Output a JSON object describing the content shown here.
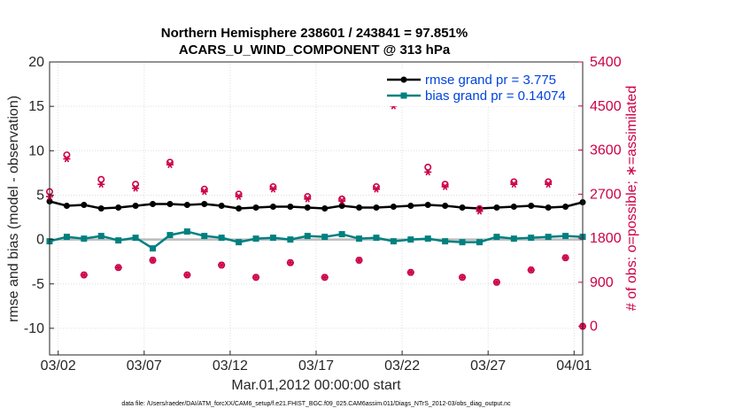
{
  "chart_data": {
    "type": "line",
    "title_line1": "Northern Hemisphere 238601 / 243841 = 97.851%",
    "title_line2": "ACARS_U_WIND_COMPONENT @ 313 hPa",
    "xlabel": "Mar.01,2012 00:00:00 start",
    "ylabel_left": "rmse and bias (model - observation)",
    "ylabel_right": "# of obs: o=possible; ∗=assimilated",
    "footnote": "data file: /Users/raeder/DAI/ATM_forcXX/CAM6_setup/f.e21.FHIST_BGC.f09_025.CAM6assim.011/Diags_NTrS_2012-03/obs_diag_output.nc",
    "x_range_days": [
      0.5,
      31.5
    ],
    "x_ticks": [
      {
        "day": 1,
        "label": "03/02"
      },
      {
        "day": 6,
        "label": "03/07"
      },
      {
        "day": 11,
        "label": "03/12"
      },
      {
        "day": 16,
        "label": "03/17"
      },
      {
        "day": 21,
        "label": "03/22"
      },
      {
        "day": 26,
        "label": "03/27"
      },
      {
        "day": 31,
        "label": "04/01"
      }
    ],
    "ylim_left": [
      -13,
      20
    ],
    "yticks_left": [
      20,
      15,
      10,
      5,
      0,
      -5,
      -10
    ],
    "ylim_right": [
      -585,
      5400
    ],
    "yticks_right": [
      5400,
      4500,
      3600,
      2700,
      1800,
      900,
      0
    ],
    "zero_line": true,
    "legend": [
      {
        "label": "rmse grand pr = 3.775",
        "color": "#000000"
      },
      {
        "label": "bias grand pr = 0.14074",
        "color": "#008080"
      }
    ],
    "series": [
      {
        "name": "rmse",
        "color": "#000000",
        "axis": "left",
        "x": [
          0.5,
          1.5,
          2.5,
          3.5,
          4.5,
          5.5,
          6.5,
          7.5,
          8.5,
          9.5,
          10.5,
          11.5,
          12.5,
          13.5,
          14.5,
          15.5,
          16.5,
          17.5,
          18.5,
          19.5,
          20.5,
          21.5,
          22.5,
          23.5,
          24.5,
          25.5,
          26.5,
          27.5,
          28.5,
          29.5,
          30.5,
          31.5
        ],
        "values": [
          4.3,
          3.8,
          3.9,
          3.5,
          3.6,
          3.8,
          4.0,
          4.0,
          3.9,
          4.0,
          3.8,
          3.5,
          3.6,
          3.7,
          3.7,
          3.6,
          3.5,
          3.8,
          3.6,
          3.6,
          3.7,
          3.8,
          3.9,
          3.8,
          3.6,
          3.5,
          3.6,
          3.7,
          3.8,
          3.6,
          3.7,
          4.2
        ]
      },
      {
        "name": "bias",
        "color": "#008080",
        "axis": "left",
        "x": [
          0.5,
          1.5,
          2.5,
          3.5,
          4.5,
          5.5,
          6.5,
          7.5,
          8.5,
          9.5,
          10.5,
          11.5,
          12.5,
          13.5,
          14.5,
          15.5,
          16.5,
          17.5,
          18.5,
          19.5,
          20.5,
          21.5,
          22.5,
          23.5,
          24.5,
          25.5,
          26.5,
          27.5,
          28.5,
          29.5,
          30.5,
          31.5
        ],
        "values": [
          -0.2,
          0.3,
          0.1,
          0.4,
          -0.1,
          0.2,
          -1.0,
          0.5,
          0.9,
          0.4,
          0.2,
          -0.3,
          0.1,
          0.2,
          0.0,
          0.4,
          0.3,
          0.6,
          0.1,
          0.2,
          -0.2,
          0.0,
          0.1,
          -0.2,
          -0.3,
          -0.3,
          0.3,
          0.1,
          0.2,
          0.3,
          0.4,
          0.3
        ]
      },
      {
        "name": "possible",
        "color": "#cc0044",
        "axis": "right",
        "marker": "o",
        "x": [
          0.5,
          1.5,
          2.5,
          3.5,
          4.5,
          5.5,
          6.5,
          7.5,
          8.5,
          9.5,
          10.5,
          11.5,
          12.5,
          13.5,
          14.5,
          15.5,
          16.5,
          17.5,
          18.5,
          19.5,
          20.5,
          21.5,
          22.5,
          23.5,
          24.5,
          25.5,
          26.5,
          27.5,
          28.5,
          29.5,
          30.5,
          31.5
        ],
        "values": [
          2750,
          3500,
          1050,
          3000,
          1200,
          2900,
          1350,
          3350,
          1050,
          2800,
          1250,
          2700,
          1000,
          2850,
          1300,
          2650,
          1000,
          2600,
          1350,
          2850,
          4600,
          1100,
          3250,
          2900,
          1000,
          2400,
          900,
          2950,
          1150,
          2950,
          1400,
          0
        ]
      },
      {
        "name": "assimilated",
        "color": "#cc0044",
        "axis": "right",
        "marker": "*",
        "x": [
          0.5,
          1.5,
          2.5,
          3.5,
          4.5,
          5.5,
          6.5,
          7.5,
          8.5,
          9.5,
          10.5,
          11.5,
          12.5,
          13.5,
          14.5,
          15.5,
          16.5,
          17.5,
          18.5,
          19.5,
          20.5,
          21.5,
          22.5,
          23.5,
          24.5,
          25.5,
          26.5,
          27.5,
          28.5,
          29.5,
          30.5,
          31.5
        ],
        "values": [
          2650,
          3420,
          1050,
          2900,
          1200,
          2820,
          1350,
          3300,
          1050,
          2750,
          1250,
          2650,
          1000,
          2800,
          1300,
          2600,
          1000,
          2560,
          1350,
          2800,
          4500,
          1100,
          3150,
          2850,
          1000,
          2350,
          900,
          2900,
          1150,
          2900,
          1400,
          0
        ]
      }
    ]
  }
}
